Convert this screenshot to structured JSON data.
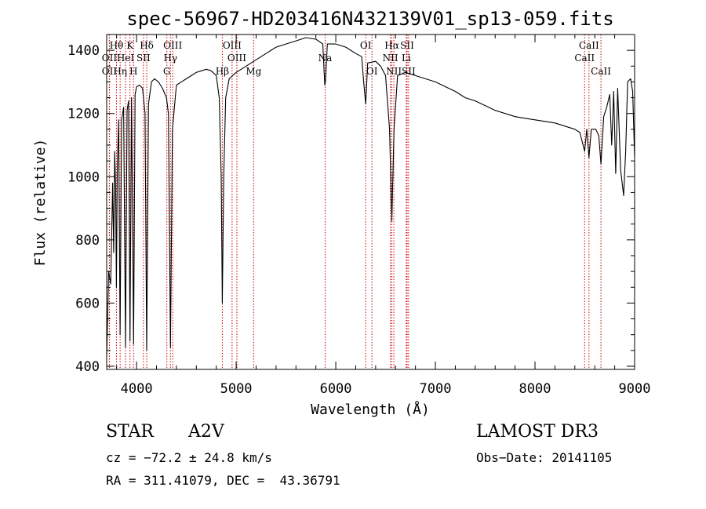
{
  "chart_data": {
    "type": "line",
    "title": "spec-56967-HD203416N432139V01_sp13-059.fits",
    "xlabel": "Wavelength (Å)",
    "ylabel": "Flux (relative)",
    "xlim": [
      3700,
      9000
    ],
    "ylim": [
      390,
      1450
    ],
    "xticks": [
      4000,
      5000,
      6000,
      7000,
      8000,
      9000
    ],
    "yticks": [
      400,
      600,
      800,
      1000,
      1200,
      1400
    ],
    "series": [
      {
        "color": "#000000",
        "points": [
          [
            3700,
            430
          ],
          [
            3720,
            700
          ],
          [
            3740,
            660
          ],
          [
            3760,
            980
          ],
          [
            3770,
            760
          ],
          [
            3780,
            1080
          ],
          [
            3790,
            960
          ],
          [
            3798,
            650
          ],
          [
            3806,
            1020
          ],
          [
            3820,
            1180
          ],
          [
            3835,
            500
          ],
          [
            3850,
            1180
          ],
          [
            3870,
            1220
          ],
          [
            3889,
            460
          ],
          [
            3905,
            1210
          ],
          [
            3920,
            1240
          ],
          [
            3934,
            480
          ],
          [
            3950,
            1250
          ],
          [
            3970,
            470
          ],
          [
            3985,
            1260
          ],
          [
            4000,
            1285
          ],
          [
            4030,
            1290
          ],
          [
            4060,
            1280
          ],
          [
            4085,
            1200
          ],
          [
            4102,
            450
          ],
          [
            4120,
            1230
          ],
          [
            4150,
            1300
          ],
          [
            4180,
            1310
          ],
          [
            4220,
            1300
          ],
          [
            4260,
            1280
          ],
          [
            4300,
            1250
          ],
          [
            4320,
            1200
          ],
          [
            4340,
            460
          ],
          [
            4360,
            1150
          ],
          [
            4400,
            1290
          ],
          [
            4450,
            1300
          ],
          [
            4500,
            1310
          ],
          [
            4550,
            1320
          ],
          [
            4600,
            1330
          ],
          [
            4650,
            1335
          ],
          [
            4700,
            1340
          ],
          [
            4750,
            1335
          ],
          [
            4800,
            1320
          ],
          [
            4830,
            1250
          ],
          [
            4850,
            1000
          ],
          [
            4861,
            600
          ],
          [
            4875,
            1000
          ],
          [
            4895,
            1250
          ],
          [
            4930,
            1310
          ],
          [
            5000,
            1330
          ],
          [
            5100,
            1350
          ],
          [
            5200,
            1370
          ],
          [
            5300,
            1390
          ],
          [
            5400,
            1410
          ],
          [
            5500,
            1420
          ],
          [
            5600,
            1430
          ],
          [
            5700,
            1440
          ],
          [
            5800,
            1435
          ],
          [
            5870,
            1420
          ],
          [
            5889,
            1290
          ],
          [
            5896,
            1300
          ],
          [
            5915,
            1420
          ],
          [
            6000,
            1420
          ],
          [
            6100,
            1410
          ],
          [
            6200,
            1390
          ],
          [
            6260,
            1380
          ],
          [
            6280,
            1300
          ],
          [
            6300,
            1230
          ],
          [
            6320,
            1360
          ],
          [
            6400,
            1365
          ],
          [
            6450,
            1350
          ],
          [
            6500,
            1320
          ],
          [
            6540,
            1150
          ],
          [
            6563,
            860
          ],
          [
            6585,
            1150
          ],
          [
            6620,
            1320
          ],
          [
            6700,
            1330
          ],
          [
            6800,
            1320
          ],
          [
            6900,
            1310
          ],
          [
            7000,
            1300
          ],
          [
            7100,
            1285
          ],
          [
            7200,
            1270
          ],
          [
            7300,
            1250
          ],
          [
            7400,
            1240
          ],
          [
            7500,
            1225
          ],
          [
            7600,
            1210
          ],
          [
            7700,
            1200
          ],
          [
            7800,
            1190
          ],
          [
            7900,
            1185
          ],
          [
            8000,
            1180
          ],
          [
            8100,
            1175
          ],
          [
            8200,
            1170
          ],
          [
            8300,
            1160
          ],
          [
            8400,
            1150
          ],
          [
            8450,
            1140
          ],
          [
            8498,
            1080
          ],
          [
            8520,
            1150
          ],
          [
            8542,
            1060
          ],
          [
            8565,
            1150
          ],
          [
            8610,
            1150
          ],
          [
            8640,
            1130
          ],
          [
            8662,
            1040
          ],
          [
            8690,
            1190
          ],
          [
            8720,
            1220
          ],
          [
            8750,
            1260
          ],
          [
            8770,
            1100
          ],
          [
            8790,
            1270
          ],
          [
            8810,
            1010
          ],
          [
            8830,
            1280
          ],
          [
            8860,
            1020
          ],
          [
            8890,
            940
          ],
          [
            8910,
            1080
          ],
          [
            8930,
            1300
          ],
          [
            8960,
            1310
          ],
          [
            8980,
            1270
          ],
          [
            9000,
            1060
          ]
        ]
      }
    ],
    "line_markers": [
      {
        "label": "Hθ",
        "x": 3798,
        "row": 1
      },
      {
        "label": "OII",
        "x": 3727,
        "row": 2
      },
      {
        "label": "OII",
        "x": 3727,
        "row": 3
      },
      {
        "label": "Hη",
        "x": 3835,
        "row": 3
      },
      {
        "label": "HeI",
        "x": 3889,
        "row": 2
      },
      {
        "label": "K",
        "x": 3934,
        "row": 1
      },
      {
        "label": "SII",
        "x": 4069,
        "row": 2
      },
      {
        "label": "H",
        "x": 3970,
        "row": 3
      },
      {
        "label": "Hδ",
        "x": 4102,
        "row": 1
      },
      {
        "label": "OIII",
        "x": 4363,
        "row": 1
      },
      {
        "label": "Hγ",
        "x": 4340,
        "row": 2
      },
      {
        "label": "G",
        "x": 4304,
        "row": 3
      },
      {
        "label": "Hβ",
        "x": 4861,
        "row": 3
      },
      {
        "label": "OIII",
        "x": 4959,
        "row": 1
      },
      {
        "label": "OIII",
        "x": 5007,
        "row": 2
      },
      {
        "label": "Mg",
        "x": 5175,
        "row": 3
      },
      {
        "label": "Na",
        "x": 5893,
        "row": 2
      },
      {
        "label": "OI",
        "x": 6300,
        "row": 1
      },
      {
        "label": "OI",
        "x": 6363,
        "row": 3
      },
      {
        "label": "Hα",
        "x": 6563,
        "row": 1
      },
      {
        "label": "SII",
        "x": 6716,
        "row": 1
      },
      {
        "label": "NII",
        "x": 6548,
        "row": 2
      },
      {
        "label": "Li",
        "x": 6708,
        "row": 2
      },
      {
        "label": "NII",
        "x": 6583,
        "row": 3
      },
      {
        "label": "SII",
        "x": 6731,
        "row": 3
      },
      {
        "label": "CaII",
        "x": 8542,
        "row": 1
      },
      {
        "label": "CaII",
        "x": 8498,
        "row": 2
      },
      {
        "label": "CaII",
        "x": 8662,
        "row": 3
      }
    ],
    "marker_color": "#cc0000"
  },
  "info": {
    "class": "STAR",
    "subclass": "A2V",
    "survey": "LAMOST DR3",
    "cz": "cz = −72.2 ± 24.8 km/s",
    "obs_date": "Obs−Date: 20141105",
    "radec": "RA = 311.41079, DEC =  43.36791"
  }
}
